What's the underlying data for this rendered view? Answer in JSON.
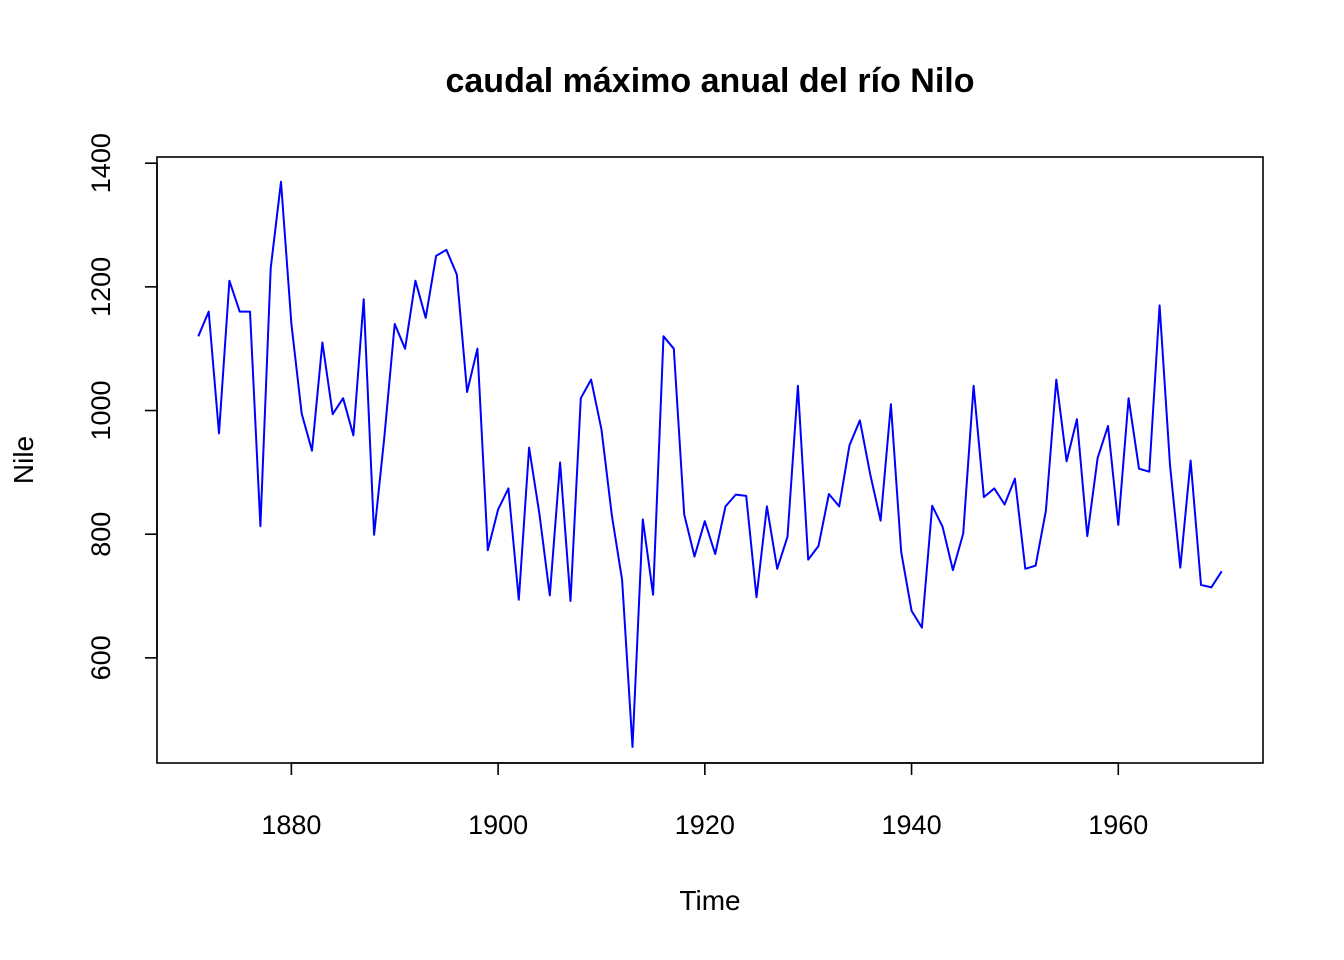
{
  "chart_data": {
    "type": "line",
    "title": "caudal máximo anual del río Nilo",
    "xlabel": "Time",
    "ylabel": "Nile",
    "xlim": [
      1867,
      1974
    ],
    "ylim": [
      430,
      1410
    ],
    "x_ticks": [
      1880,
      1900,
      1920,
      1940,
      1960
    ],
    "y_ticks": [
      600,
      800,
      1000,
      1200,
      1400
    ],
    "grid": false,
    "series_color": "#0000ff",
    "x": [
      1871,
      1872,
      1873,
      1874,
      1875,
      1876,
      1877,
      1878,
      1879,
      1880,
      1881,
      1882,
      1883,
      1884,
      1885,
      1886,
      1887,
      1888,
      1889,
      1890,
      1891,
      1892,
      1893,
      1894,
      1895,
      1896,
      1897,
      1898,
      1899,
      1900,
      1901,
      1902,
      1903,
      1904,
      1905,
      1906,
      1907,
      1908,
      1909,
      1910,
      1911,
      1912,
      1913,
      1914,
      1915,
      1916,
      1917,
      1918,
      1919,
      1920,
      1921,
      1922,
      1923,
      1924,
      1925,
      1926,
      1927,
      1928,
      1929,
      1930,
      1931,
      1932,
      1933,
      1934,
      1935,
      1936,
      1937,
      1938,
      1939,
      1940,
      1941,
      1942,
      1943,
      1944,
      1945,
      1946,
      1947,
      1948,
      1949,
      1950,
      1951,
      1952,
      1953,
      1954,
      1955,
      1956,
      1957,
      1958,
      1959,
      1960,
      1961,
      1962,
      1963,
      1964,
      1965,
      1966,
      1967,
      1968,
      1969,
      1970
    ],
    "series": [
      {
        "values": [
          1120,
          1160,
          963,
          1210,
          1160,
          1160,
          813,
          1230,
          1370,
          1140,
          995,
          935,
          1110,
          994,
          1020,
          960,
          1180,
          799,
          958,
          1140,
          1100,
          1210,
          1150,
          1250,
          1260,
          1220,
          1030,
          1100,
          774,
          840,
          874,
          694,
          940,
          833,
          701,
          916,
          692,
          1020,
          1050,
          969,
          831,
          726,
          456,
          824,
          702,
          1120,
          1100,
          832,
          764,
          821,
          768,
          845,
          864,
          862,
          698,
          845,
          744,
          796,
          1040,
          759,
          781,
          865,
          845,
          944,
          984,
          897,
          822,
          1010,
          771,
          676,
          649,
          846,
          812,
          742,
          801,
          1040,
          860,
          874,
          848,
          890,
          744,
          749,
          838,
          1050,
          918,
          986,
          797,
          923,
          975,
          815,
          1020,
          906,
          901,
          1170,
          912,
          746,
          919,
          718,
          714,
          740
        ]
      }
    ]
  }
}
